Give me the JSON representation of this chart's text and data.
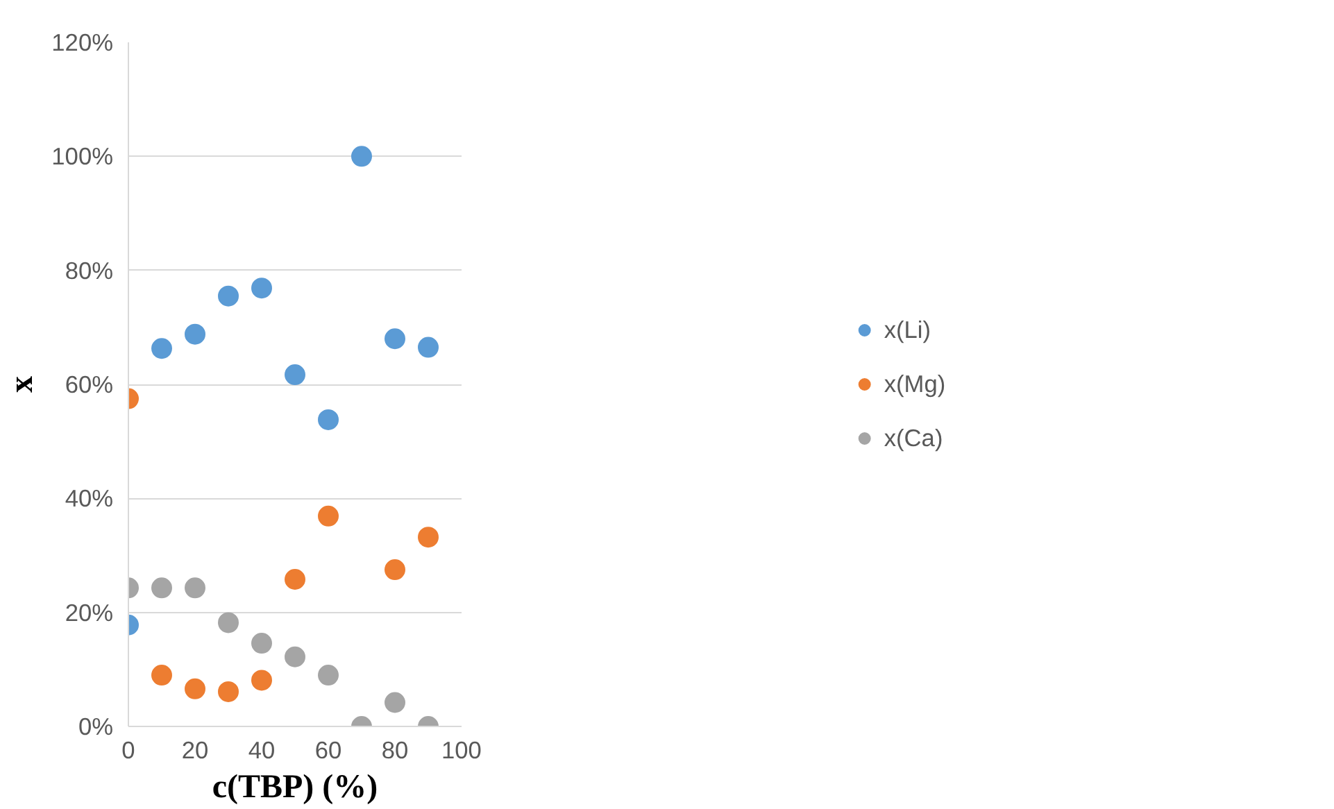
{
  "chart_data": {
    "type": "scatter",
    "xlabel": "c(TBP) (%)",
    "ylabel": "x",
    "x": [
      0,
      10,
      20,
      30,
      40,
      50,
      60,
      70,
      80,
      90
    ],
    "series": [
      {
        "name": "x(Li)",
        "color": "#5b9bd5",
        "values": [
          17.8,
          66.3,
          68.8,
          75.5,
          76.9,
          61.7,
          53.8,
          100,
          68.0,
          66.5
        ]
      },
      {
        "name": "x(Mg)",
        "color": "#ed7d31",
        "values": [
          57.5,
          9.0,
          6.6,
          6.1,
          8.1,
          25.8,
          36.9,
          null,
          27.5,
          33.2
        ]
      },
      {
        "name": "x(Ca)",
        "color": "#a5a5a5",
        "values": [
          24.3,
          24.3,
          24.3,
          18.2,
          14.6,
          12.2,
          9.0,
          0,
          4.2,
          0
        ]
      }
    ],
    "xlim": [
      0,
      100
    ],
    "xticks": [
      0,
      20,
      40,
      60,
      80,
      100
    ],
    "ylim": [
      0,
      120
    ],
    "yticks": [
      {
        "value": 0,
        "label": "0%"
      },
      {
        "value": 20,
        "label": "20%"
      },
      {
        "value": 40,
        "label": "40%"
      },
      {
        "value": 60,
        "label": "60%"
      },
      {
        "value": 80,
        "label": "80%"
      },
      {
        "value": 100,
        "label": "100%"
      },
      {
        "value": 120,
        "label": "120%"
      }
    ],
    "grid": "y",
    "legend": "right",
    "marker": "circle"
  }
}
